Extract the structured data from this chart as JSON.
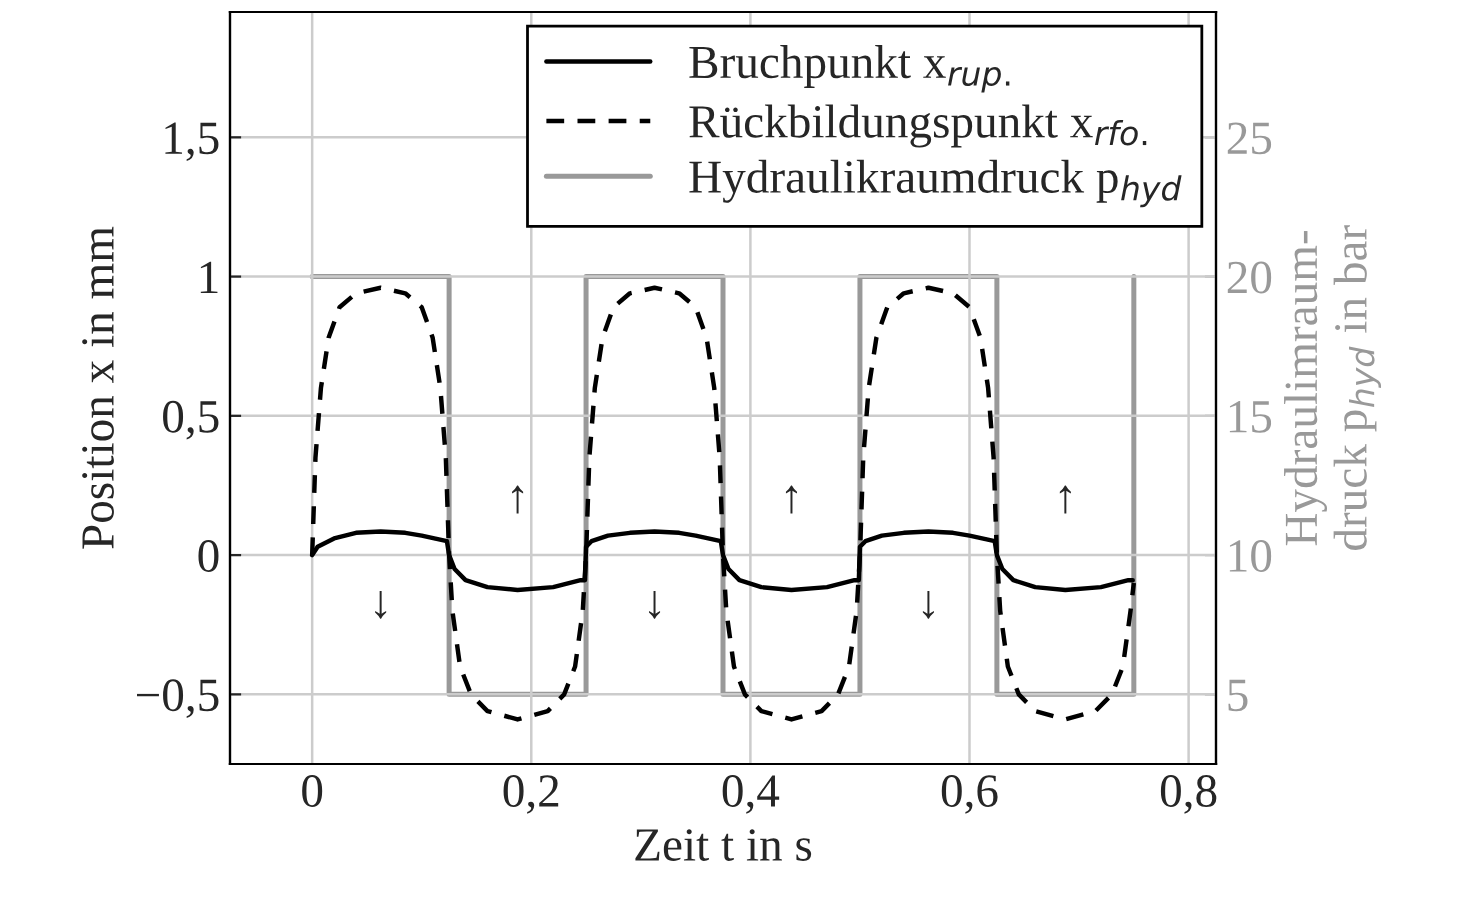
{
  "chart_data": {
    "type": "line",
    "xlabel": "Zeit t in s",
    "ylabel": "Position x in mm",
    "y2label": "Hydraulimraum-\ndruck p$_{hyd}$ in bar",
    "xlim": [
      -0.075,
      0.825
    ],
    "xticks": [
      0,
      {
        "value": 0.2,
        "label": "0,2"
      },
      {
        "value": 0.4,
        "label": "0,4"
      },
      {
        "value": 0.6,
        "label": "0,6"
      },
      {
        "value": 0.8,
        "label": "0,8"
      }
    ],
    "ylim": [
      -0.75,
      1.95
    ],
    "yticks": [
      {
        "value": -0.5,
        "label": "−0,5"
      },
      0,
      {
        "value": 0.5,
        "label": "0,5"
      },
      1,
      {
        "value": 1.5,
        "label": "1,5"
      }
    ],
    "y2lim": [
      2.5,
      29.5
    ],
    "y2ticks": [
      5,
      10,
      15,
      20,
      25
    ],
    "grid": true,
    "legend": "top right",
    "series": [
      {
        "name": "Bruchpunkt x$_{rup.}$",
        "color": "#000000",
        "line_style": "solid",
        "x": [
          0,
          0.005,
          0.02,
          0.04,
          0.0625,
          0.085,
          0.1,
          0.123,
          0.125,
          0.13,
          0.14,
          0.16,
          0.1875,
          0.22,
          0.245,
          0.249,
          0.25,
          0.255,
          0.27,
          0.29,
          0.3125,
          0.335,
          0.35,
          0.373,
          0.375,
          0.38,
          0.39,
          0.41,
          0.4375,
          0.47,
          0.495,
          0.499,
          0.5,
          0.505,
          0.52,
          0.54,
          0.5625,
          0.585,
          0.6,
          0.623,
          0.625,
          0.63,
          0.64,
          0.66,
          0.6875,
          0.72,
          0.745,
          0.749
        ],
        "values": [
          0,
          0.03,
          0.06,
          0.08,
          0.085,
          0.08,
          0.07,
          0.05,
          0.0,
          -0.05,
          -0.09,
          -0.115,
          -0.125,
          -0.115,
          -0.09,
          -0.09,
          0.03,
          0.05,
          0.07,
          0.08,
          0.085,
          0.08,
          0.07,
          0.05,
          0.0,
          -0.05,
          -0.09,
          -0.115,
          -0.125,
          -0.115,
          -0.09,
          -0.09,
          0.03,
          0.05,
          0.07,
          0.08,
          0.085,
          0.08,
          0.07,
          0.05,
          0.0,
          -0.05,
          -0.09,
          -0.115,
          -0.125,
          -0.115,
          -0.09,
          -0.09
        ]
      },
      {
        "name": "Rückbildungspunkt x$_{rfo.}$",
        "color": "#000000",
        "line_style": "dashed",
        "x": [
          0,
          0.003,
          0.008,
          0.015,
          0.025,
          0.04,
          0.0625,
          0.085,
          0.1,
          0.11,
          0.117,
          0.122,
          0.125,
          0.128,
          0.135,
          0.145,
          0.16,
          0.1875,
          0.215,
          0.23,
          0.24,
          0.247,
          0.25,
          0.253,
          0.258,
          0.265,
          0.275,
          0.29,
          0.3125,
          0.335,
          0.35,
          0.36,
          0.367,
          0.372,
          0.375,
          0.378,
          0.385,
          0.395,
          0.41,
          0.4375,
          0.465,
          0.48,
          0.49,
          0.497,
          0.5,
          0.503,
          0.508,
          0.515,
          0.525,
          0.54,
          0.5625,
          0.585,
          0.6,
          0.61,
          0.617,
          0.622,
          0.625,
          0.628,
          0.635,
          0.645,
          0.66,
          0.6875,
          0.715,
          0.73,
          0.74,
          0.747,
          0.75
        ],
        "values": [
          0,
          0.35,
          0.6,
          0.78,
          0.89,
          0.94,
          0.96,
          0.94,
          0.89,
          0.78,
          0.6,
          0.35,
          0,
          -0.2,
          -0.4,
          -0.5,
          -0.56,
          -0.59,
          -0.56,
          -0.5,
          -0.4,
          -0.2,
          0,
          0.35,
          0.6,
          0.78,
          0.89,
          0.94,
          0.96,
          0.94,
          0.89,
          0.78,
          0.6,
          0.35,
          0,
          -0.2,
          -0.4,
          -0.5,
          -0.56,
          -0.59,
          -0.56,
          -0.5,
          -0.4,
          -0.2,
          0,
          0.35,
          0.6,
          0.78,
          0.89,
          0.94,
          0.96,
          0.94,
          0.89,
          0.78,
          0.6,
          0.35,
          0,
          -0.2,
          -0.4,
          -0.5,
          -0.56,
          -0.59,
          -0.56,
          -0.5,
          -0.4,
          -0.2,
          -0.1
        ]
      },
      {
        "name": "Hydraulikraumdruck p$_{hyd}$",
        "color": "#999999",
        "line_style": "solid",
        "axis": "y2",
        "x": [
          0,
          0.125,
          0.125,
          0.25,
          0.25,
          0.375,
          0.375,
          0.5,
          0.5,
          0.625,
          0.625,
          0.75,
          0.75
        ],
        "values": [
          20,
          20,
          5,
          5,
          20,
          20,
          5,
          5,
          20,
          20,
          5,
          5,
          20
        ]
      }
    ],
    "annotations": [
      "↓",
      "↑",
      "↓",
      "↑",
      "↓",
      "↑"
    ]
  }
}
